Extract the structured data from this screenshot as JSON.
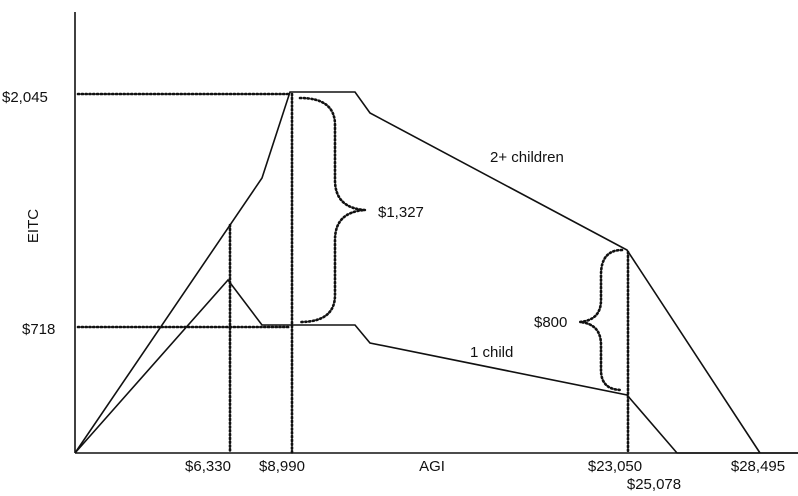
{
  "axes": {
    "y_label": "EITC",
    "x_label": "AGI"
  },
  "y_markers": [
    "$2,045",
    "$718"
  ],
  "x_markers": [
    "$6,330",
    "$8,990",
    "$23,050",
    "$25,078",
    "$28,495"
  ],
  "curves": [
    "2+ children",
    "1 child"
  ],
  "differences": [
    "$1,327",
    "$800"
  ]
}
